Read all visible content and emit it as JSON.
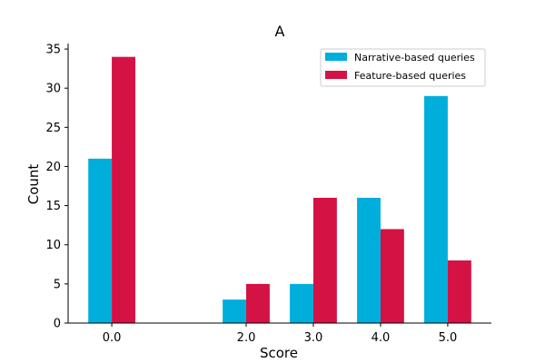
{
  "chart_data": {
    "type": "bar",
    "title": "A",
    "xlabel": "Score",
    "ylabel": "Count",
    "x": [
      0.0,
      2.0,
      3.0,
      4.0,
      5.0
    ],
    "categories": [
      "0.0",
      "2.0",
      "3.0",
      "4.0",
      "5.0"
    ],
    "xlim": [
      -0.65,
      5.65
    ],
    "ylim": [
      0,
      35.7
    ],
    "yticks": [
      "0",
      "5",
      "10",
      "15",
      "20",
      "25",
      "30",
      "35"
    ],
    "ytick_values": [
      0,
      5,
      10,
      15,
      20,
      25,
      30,
      35
    ],
    "bar_width": 0.35,
    "grid": false,
    "legend_position": "top-right",
    "series": [
      {
        "name": "Narrative-based queries",
        "color": "#00aedb",
        "values": [
          21,
          3,
          5,
          16,
          29
        ]
      },
      {
        "name": "Feature-based queries",
        "color": "#d41243",
        "values": [
          34,
          5,
          16,
          12,
          8
        ]
      }
    ]
  }
}
